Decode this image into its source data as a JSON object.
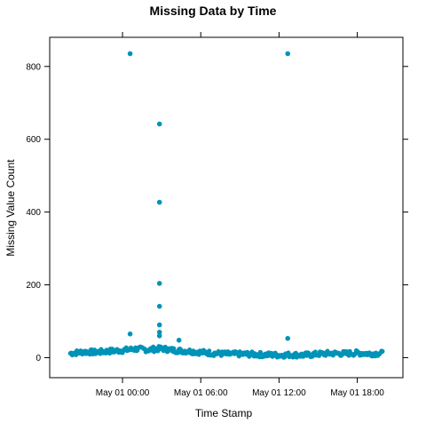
{
  "chart_data": {
    "type": "scatter",
    "title": "Missing Data by Time",
    "xlabel": "Time Stamp",
    "ylabel": "Missing Value Count",
    "xlim": [
      "2018-04-30 18:25",
      "2018-05-01 21:30"
    ],
    "ylim": [
      -55,
      880
    ],
    "x_ticks": [
      "May 01 00:00",
      "May 01 06:00",
      "May 01 12:00",
      "May 01 18:00"
    ],
    "x_tick_values": [
      "2018-05-01 00:00",
      "2018-05-01 06:00",
      "2018-05-01 12:00",
      "2018-05-01 18:00"
    ],
    "y_ticks": [
      "0",
      "200",
      "400",
      "600",
      "800"
    ],
    "y_tick_values": [
      0,
      200,
      400,
      600,
      800
    ],
    "grid": false,
    "point_color": "#0093b8",
    "baseline_note": "",
    "outliers": [
      {
        "x": "2018-05-01 00:35",
        "y": 835
      },
      {
        "x": "2018-05-01 02:50",
        "y": 642
      },
      {
        "x": "2018-05-01 02:50",
        "y": 427
      },
      {
        "x": "2018-05-01 02:50",
        "y": 204
      },
      {
        "x": "2018-05-01 02:50",
        "y": 141
      },
      {
        "x": "2018-05-01 02:50",
        "y": 90
      },
      {
        "x": "2018-05-01 02:50",
        "y": 70
      },
      {
        "x": "2018-05-01 02:50",
        "y": 60
      },
      {
        "x": "2018-05-01 00:35",
        "y": 65
      },
      {
        "x": "2018-05-01 04:20",
        "y": 48
      },
      {
        "x": "2018-05-01 12:40",
        "y": 835
      },
      {
        "x": "2018-05-01 12:40",
        "y": 53
      }
    ],
    "baseline": {
      "x": [
        "2018-04-30 20:00",
        "2018-04-30 21:00",
        "2018-04-30 22:00",
        "2018-04-30 23:00",
        "2018-05-01 00:00",
        "2018-05-01 01:00",
        "2018-05-01 02:00",
        "2018-05-01 03:00",
        "2018-05-01 04:00",
        "2018-05-01 05:00",
        "2018-05-01 06:00",
        "2018-05-01 07:00",
        "2018-05-01 08:00",
        "2018-05-01 09:00",
        "2018-05-01 10:00",
        "2018-05-01 11:00",
        "2018-05-01 12:00",
        "2018-05-01 13:00",
        "2018-05-01 14:00",
        "2018-05-01 15:00",
        "2018-05-01 16:00",
        "2018-05-01 17:00",
        "2018-05-01 18:00",
        "2018-05-01 19:00",
        "2018-05-01 20:00"
      ],
      "y": [
        12,
        16,
        15,
        18,
        20,
        24,
        22,
        25,
        20,
        18,
        15,
        12,
        10,
        10,
        9,
        8,
        7,
        8,
        7,
        10,
        12,
        11,
        13,
        11,
        12
      ]
    }
  }
}
